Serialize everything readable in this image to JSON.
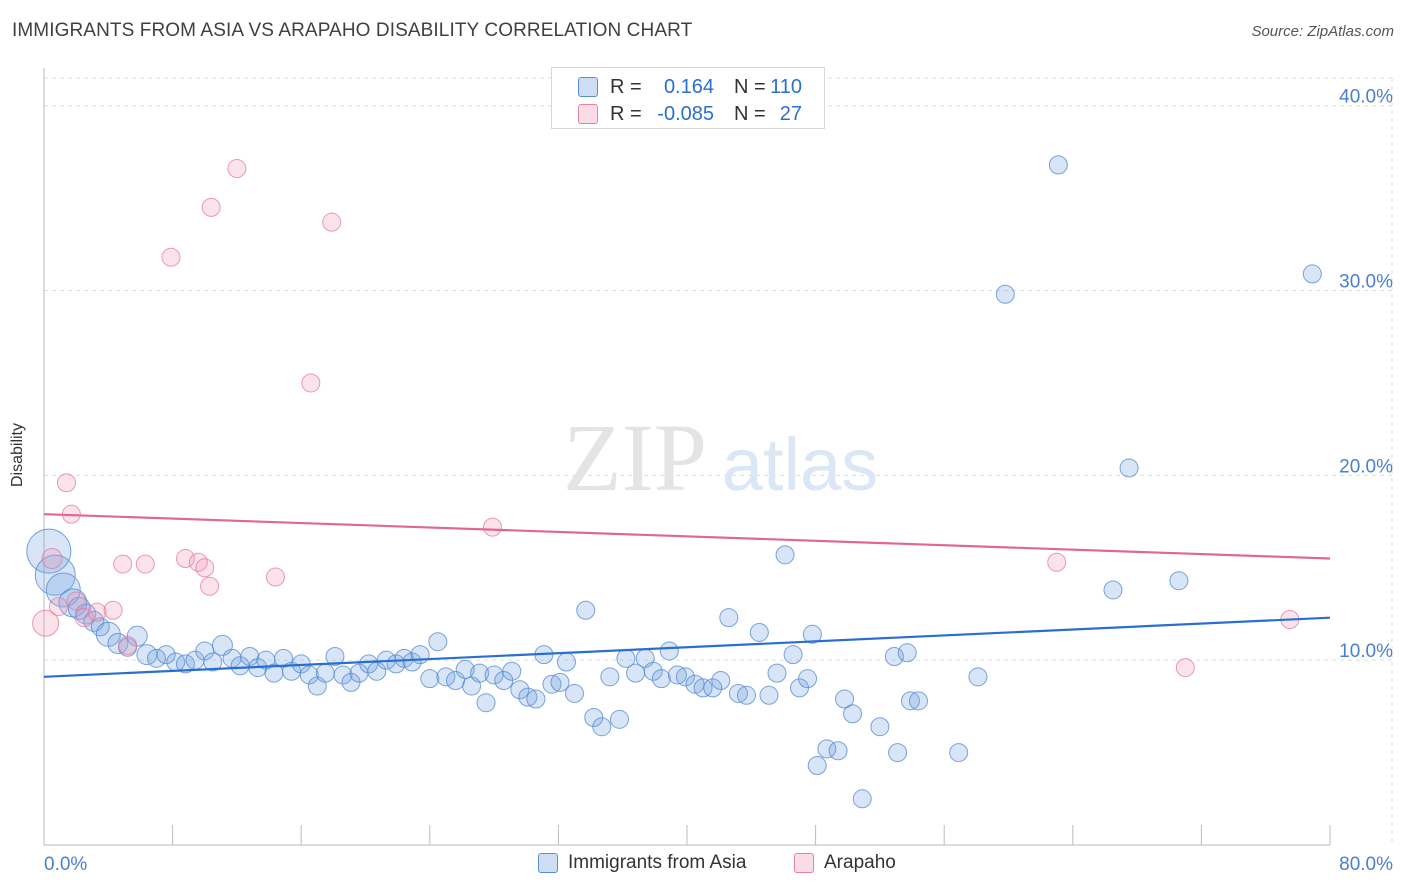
{
  "title": "IMMIGRANTS FROM ASIA VS ARAPAHO DISABILITY CORRELATION CHART",
  "source": "Source: ZipAtlas.com",
  "watermark": {
    "zip": "ZIP",
    "atlas": "atlas"
  },
  "colors": {
    "blue": "#6fa0e0",
    "blue_line": "#2a6fcf",
    "pink": "#f09ab5",
    "pink_line": "#e06890",
    "axis_text": "#4a7fd0",
    "grid": "#dddddd"
  },
  "legend_top": {
    "rows": [
      {
        "r_label": "R =",
        "r_value": "0.164",
        "n_label": "N =",
        "n_value": "110"
      },
      {
        "r_label": "R =",
        "r_value": "-0.085",
        "n_label": "N =",
        "n_value": "27"
      }
    ]
  },
  "legend_bottom": {
    "items": [
      "Immigrants from Asia",
      "Arapaho"
    ]
  },
  "chart_data": {
    "type": "scatter",
    "title": "IMMIGRANTS FROM ASIA VS ARAPAHO DISABILITY CORRELATION CHART",
    "xlabel": "",
    "ylabel": "Disability",
    "xlim": [
      0,
      80
    ],
    "ylim": [
      0,
      41.5
    ],
    "x_tick_labels": [
      "0.0%",
      "80.0%"
    ],
    "y_ticks": [
      10,
      20,
      30,
      40
    ],
    "y_tick_labels": [
      "10.0%",
      "20.0%",
      "30.0%",
      "40.0%"
    ],
    "grid": "horizontal dashed",
    "legend_placement": "top-center and bottom",
    "series": [
      {
        "name": "Immigrants from Asia",
        "color": "#6fa0e0",
        "trend": {
          "x": [
            0,
            80
          ],
          "y": [
            9.1,
            12.3
          ]
        },
        "points": [
          [
            0.3,
            15.9,
            22
          ],
          [
            0.7,
            14.6,
            20
          ],
          [
            1.2,
            13.8,
            17
          ],
          [
            1.8,
            13.1,
            14
          ],
          [
            2.2,
            12.8,
            11
          ],
          [
            2.6,
            12.5,
            10
          ],
          [
            3.1,
            12.1,
            10
          ],
          [
            3.5,
            11.8,
            9
          ],
          [
            4.0,
            11.4,
            12
          ],
          [
            4.6,
            10.9,
            10
          ],
          [
            5.2,
            10.7,
            9
          ],
          [
            5.8,
            11.3,
            10
          ],
          [
            6.4,
            10.3,
            10
          ],
          [
            7.0,
            10.1,
            9
          ],
          [
            7.6,
            10.3,
            9
          ],
          [
            8.2,
            9.9,
            9
          ],
          [
            8.8,
            9.8,
            9
          ],
          [
            9.4,
            10.0,
            9
          ],
          [
            10.0,
            10.5,
            9
          ],
          [
            10.5,
            9.9,
            9
          ],
          [
            11.1,
            10.8,
            10
          ],
          [
            11.7,
            10.1,
            9
          ],
          [
            12.2,
            9.7,
            9
          ],
          [
            12.8,
            10.2,
            9
          ],
          [
            13.3,
            9.6,
            9
          ],
          [
            13.8,
            10.0,
            9
          ],
          [
            14.3,
            9.3,
            9
          ],
          [
            14.9,
            10.1,
            9
          ],
          [
            15.4,
            9.4,
            9
          ],
          [
            16.0,
            9.8,
            9
          ],
          [
            16.5,
            9.2,
            9
          ],
          [
            17.0,
            8.6,
            9
          ],
          [
            17.5,
            9.3,
            9
          ],
          [
            18.1,
            10.2,
            9
          ],
          [
            18.6,
            9.2,
            9
          ],
          [
            19.1,
            8.8,
            9
          ],
          [
            19.6,
            9.3,
            9
          ],
          [
            20.2,
            9.8,
            9
          ],
          [
            20.7,
            9.4,
            9
          ],
          [
            21.3,
            10.0,
            9
          ],
          [
            21.9,
            9.8,
            9
          ],
          [
            22.4,
            10.1,
            9
          ],
          [
            22.9,
            9.9,
            9
          ],
          [
            23.4,
            10.3,
            9
          ],
          [
            24.0,
            9.0,
            9
          ],
          [
            24.5,
            11.0,
            9
          ],
          [
            25.0,
            9.1,
            9
          ],
          [
            25.6,
            8.9,
            9
          ],
          [
            26.2,
            9.5,
            9
          ],
          [
            26.6,
            8.6,
            9
          ],
          [
            27.1,
            9.3,
            9
          ],
          [
            27.5,
            7.7,
            9
          ],
          [
            28.0,
            9.2,
            9
          ],
          [
            28.6,
            8.9,
            9
          ],
          [
            29.1,
            9.4,
            9
          ],
          [
            29.6,
            8.4,
            9
          ],
          [
            30.1,
            8.0,
            9
          ],
          [
            30.6,
            7.9,
            9
          ],
          [
            31.1,
            10.3,
            9
          ],
          [
            31.6,
            8.7,
            9
          ],
          [
            32.1,
            8.8,
            9
          ],
          [
            32.5,
            9.9,
            9
          ],
          [
            33.0,
            8.2,
            9
          ],
          [
            33.7,
            12.7,
            9
          ],
          [
            34.2,
            6.9,
            9
          ],
          [
            34.7,
            6.4,
            9
          ],
          [
            35.2,
            9.1,
            9
          ],
          [
            35.8,
            6.8,
            9
          ],
          [
            36.2,
            10.1,
            9
          ],
          [
            36.8,
            9.3,
            9
          ],
          [
            37.4,
            10.1,
            9
          ],
          [
            37.9,
            9.4,
            9
          ],
          [
            38.4,
            9.0,
            9
          ],
          [
            38.9,
            10.5,
            9
          ],
          [
            39.4,
            9.2,
            9
          ],
          [
            39.9,
            9.1,
            9
          ],
          [
            40.5,
            8.7,
            9
          ],
          [
            41.0,
            8.5,
            9
          ],
          [
            41.6,
            8.5,
            9
          ],
          [
            42.1,
            8.9,
            9
          ],
          [
            42.6,
            12.3,
            9
          ],
          [
            43.2,
            8.2,
            9
          ],
          [
            43.7,
            8.1,
            9
          ],
          [
            44.5,
            11.5,
            9
          ],
          [
            45.1,
            8.1,
            9
          ],
          [
            45.6,
            9.3,
            9
          ],
          [
            46.1,
            15.7,
            9
          ],
          [
            46.6,
            10.3,
            9
          ],
          [
            47.0,
            8.5,
            9
          ],
          [
            47.5,
            9.0,
            9
          ],
          [
            47.8,
            11.4,
            9
          ],
          [
            48.1,
            4.3,
            9
          ],
          [
            48.7,
            5.2,
            9
          ],
          [
            49.4,
            5.1,
            9
          ],
          [
            49.8,
            7.9,
            9
          ],
          [
            50.3,
            7.1,
            9
          ],
          [
            50.9,
            2.5,
            9
          ],
          [
            52.0,
            6.4,
            9
          ],
          [
            52.9,
            10.2,
            9
          ],
          [
            53.7,
            10.4,
            9
          ],
          [
            53.1,
            5.0,
            9
          ],
          [
            53.9,
            7.8,
            9
          ],
          [
            54.4,
            7.8,
            9
          ],
          [
            56.9,
            5.0,
            9
          ],
          [
            58.1,
            9.1,
            9
          ],
          [
            59.8,
            29.8,
            9
          ],
          [
            63.1,
            36.8,
            9
          ],
          [
            66.5,
            13.8,
            9
          ],
          [
            67.5,
            20.4,
            9
          ],
          [
            70.6,
            14.3,
            9
          ],
          [
            78.9,
            30.9,
            9
          ]
        ]
      },
      {
        "name": "Arapaho",
        "color": "#f09ab5",
        "trend": {
          "x": [
            0,
            80
          ],
          "y": [
            17.9,
            15.5
          ]
        },
        "points": [
          [
            0.1,
            12.0,
            13
          ],
          [
            0.5,
            15.5,
            10
          ],
          [
            0.9,
            12.9,
            9
          ],
          [
            1.4,
            19.6,
            9
          ],
          [
            1.7,
            17.9,
            9
          ],
          [
            2.0,
            13.2,
            9
          ],
          [
            2.5,
            12.3,
            9
          ],
          [
            3.3,
            12.6,
            9
          ],
          [
            4.3,
            12.7,
            9
          ],
          [
            4.9,
            15.2,
            9
          ],
          [
            5.2,
            10.8,
            9
          ],
          [
            6.3,
            15.2,
            9
          ],
          [
            7.9,
            31.8,
            9
          ],
          [
            8.8,
            15.5,
            9
          ],
          [
            9.6,
            15.3,
            9
          ],
          [
            10.0,
            15.0,
            9
          ],
          [
            10.3,
            14.0,
            9
          ],
          [
            10.4,
            34.5,
            9
          ],
          [
            12.0,
            36.6,
            9
          ],
          [
            14.4,
            14.5,
            9
          ],
          [
            16.6,
            25.0,
            9
          ],
          [
            17.9,
            33.7,
            9
          ],
          [
            27.9,
            17.2,
            9
          ],
          [
            63.0,
            15.3,
            9
          ],
          [
            71.0,
            9.6,
            9
          ],
          [
            77.5,
            12.2,
            9
          ]
        ]
      }
    ]
  }
}
